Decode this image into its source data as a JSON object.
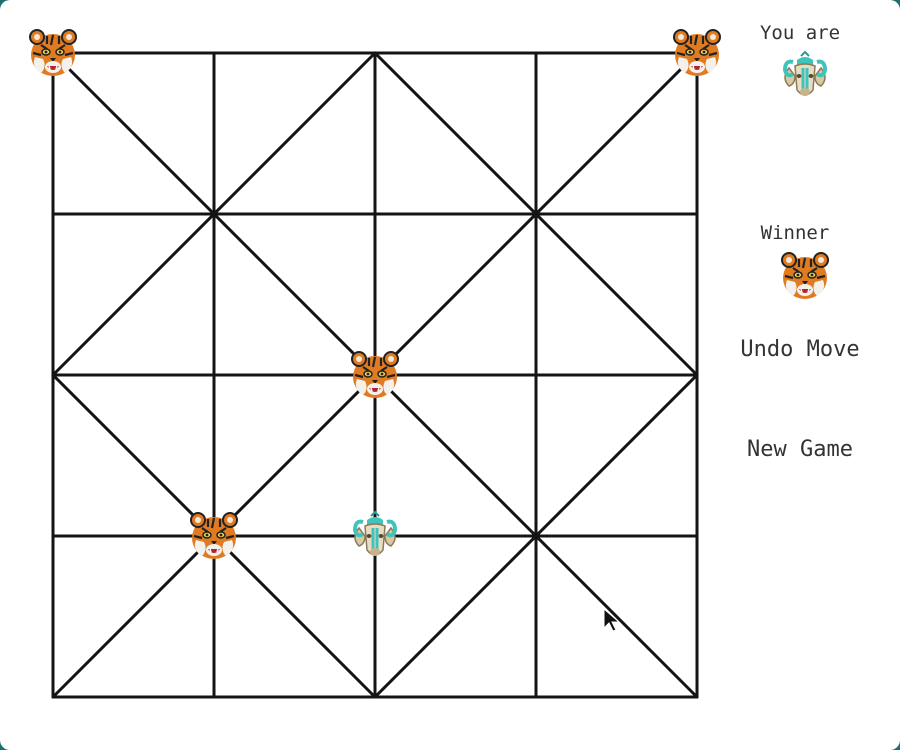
{
  "board": {
    "line_color": "#141414",
    "pieces": [
      {
        "type": "tiger",
        "col": 0,
        "row": 0
      },
      {
        "type": "tiger",
        "col": 4,
        "row": 0
      },
      {
        "type": "tiger",
        "col": 2,
        "row": 2
      },
      {
        "type": "tiger",
        "col": 1,
        "row": 3
      },
      {
        "type": "goat",
        "col": 2,
        "row": 3
      }
    ]
  },
  "sidebar": {
    "you_are_label": "You are",
    "you_are_icon": "goat-icon",
    "winner_label": "Winner",
    "winner_icon": "tiger-icon",
    "undo_label": "Undo Move",
    "new_game_label": "New Game"
  },
  "colors": {
    "tiger_orange": "#e07b22",
    "goat_teal": "#3ec4bc",
    "background": "#ffffff",
    "text": "#333333"
  }
}
